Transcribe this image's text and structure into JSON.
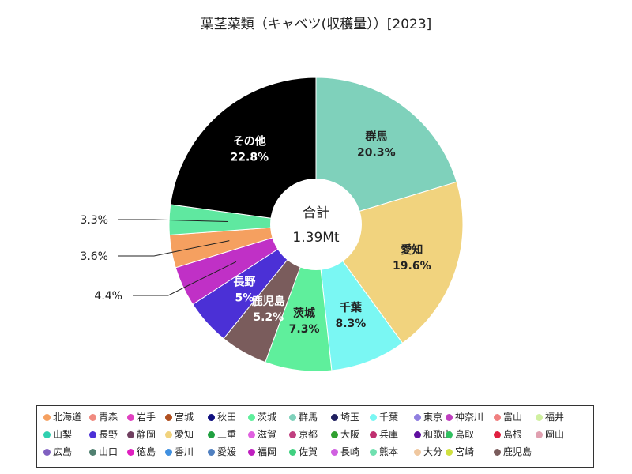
{
  "title": "葉茎菜類（キャベツ(収穫量））[2023]",
  "center": {
    "line1": "合計",
    "line2": "1.39Mt"
  },
  "chart_data": {
    "type": "pie",
    "title": "葉茎菜類（キャベツ(収穫量））[2023]",
    "total": "1.39Mt",
    "slices": [
      {
        "name": "群馬",
        "value": 20.3,
        "label": "20.3%",
        "color": "#7fd1bb",
        "text_color": "#222222",
        "show_name": true
      },
      {
        "name": "愛知",
        "value": 19.6,
        "label": "19.6%",
        "color": "#f1d37e",
        "text_color": "#222222",
        "show_name": true
      },
      {
        "name": "千葉",
        "value": 8.3,
        "label": "8.3%",
        "color": "#7af7f3",
        "text_color": "#222222",
        "show_name": true
      },
      {
        "name": "茨城",
        "value": 7.3,
        "label": "7.3%",
        "color": "#5fef9c",
        "text_color": "#222222",
        "show_name": true
      },
      {
        "name": "鹿児島",
        "value": 5.2,
        "label": "5.2%",
        "color": "#7a5c5c",
        "text_color": "#ffffff",
        "show_name": true
      },
      {
        "name": "長野",
        "value": 5.0,
        "label": "5%",
        "color": "#4b30d6",
        "text_color": "#ffffff",
        "show_name": true
      },
      {
        "name": "",
        "value": 4.4,
        "label": "4.4%",
        "color": "#c030c6",
        "text_color": "#222222",
        "show_name": false
      },
      {
        "name": "",
        "value": 3.6,
        "label": "3.6%",
        "color": "#f5a060",
        "text_color": "#222222",
        "show_name": false
      },
      {
        "name": "",
        "value": 3.3,
        "label": "3.3%",
        "color": "#5fe8a0",
        "text_color": "#222222",
        "show_name": false
      },
      {
        "name": "その他",
        "value": 22.8,
        "label": "22.8%",
        "color": "#000000",
        "text_color": "#ffffff",
        "show_name": true
      }
    ]
  },
  "legend": [
    {
      "name": "北海道",
      "color": "#f5a060"
    },
    {
      "name": "青森",
      "color": "#f08a80"
    },
    {
      "name": "岩手",
      "color": "#e040c0"
    },
    {
      "name": "宮城",
      "color": "#b05020"
    },
    {
      "name": "秋田",
      "color": "#101080"
    },
    {
      "name": "茨城",
      "color": "#5fef9c"
    },
    {
      "name": "群馬",
      "color": "#7fd1bb"
    },
    {
      "name": "埼玉",
      "color": "#202060"
    },
    {
      "name": "千葉",
      "color": "#7af7f3"
    },
    {
      "name": "東京",
      "color": "#9080e0"
    },
    {
      "name": "神奈川",
      "color": "#c040c0"
    },
    {
      "name": "富山",
      "color": "#f08080"
    },
    {
      "name": "福井",
      "color": "#d0f0a0"
    },
    {
      "name": "山梨",
      "color": "#30d0b0"
    },
    {
      "name": "長野",
      "color": "#4b30d6"
    },
    {
      "name": "静岡",
      "color": "#704060"
    },
    {
      "name": "愛知",
      "color": "#f1d37e"
    },
    {
      "name": "三重",
      "color": "#20a040"
    },
    {
      "name": "滋賀",
      "color": "#e060e0"
    },
    {
      "name": "京都",
      "color": "#c04080"
    },
    {
      "name": "大阪",
      "color": "#30a030"
    },
    {
      "name": "兵庫",
      "color": "#c03070"
    },
    {
      "name": "和歌山",
      "color": "#6010a0"
    },
    {
      "name": "鳥取",
      "color": "#30c060"
    },
    {
      "name": "島根",
      "color": "#e02040"
    },
    {
      "name": "岡山",
      "color": "#e0a0b0"
    },
    {
      "name": "広島",
      "color": "#8060c0"
    },
    {
      "name": "山口",
      "color": "#508070"
    },
    {
      "name": "徳島",
      "color": "#e020c0"
    },
    {
      "name": "香川",
      "color": "#4090e0"
    },
    {
      "name": "愛媛",
      "color": "#5080c0"
    },
    {
      "name": "福岡",
      "color": "#c020c0"
    },
    {
      "name": "佐賀",
      "color": "#40d080"
    },
    {
      "name": "長崎",
      "color": "#d060e0"
    },
    {
      "name": "熊本",
      "color": "#70e0b0"
    },
    {
      "name": "大分",
      "color": "#f0c8a0"
    },
    {
      "name": "宮崎",
      "color": "#d0e040"
    },
    {
      "name": "鹿児島",
      "color": "#7a5c5c"
    }
  ]
}
